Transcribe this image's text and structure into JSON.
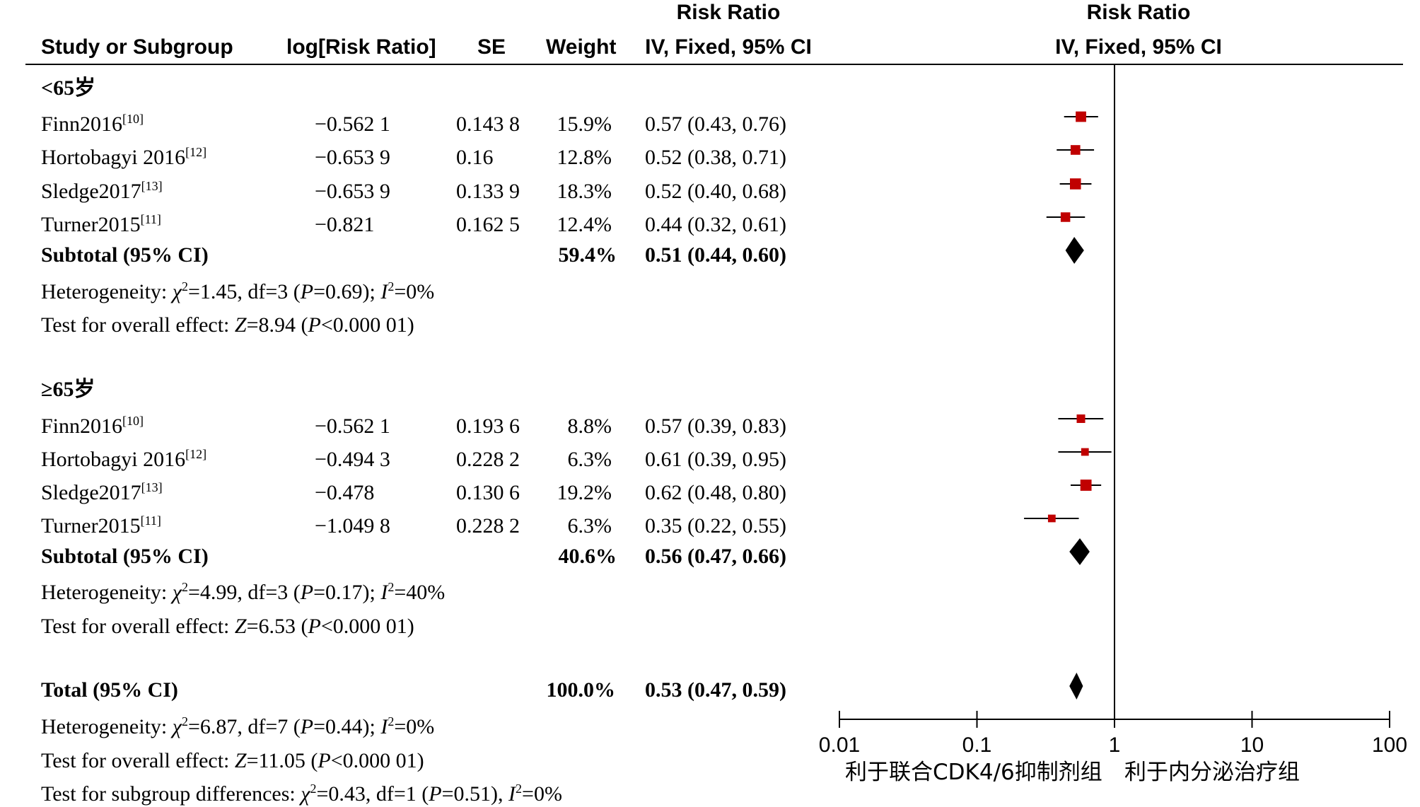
{
  "headers": {
    "study": "Study or Subgroup",
    "log_rr": "log[Risk Ratio]",
    "se": "SE",
    "weight": "Weight",
    "rr_top": "Risk Ratio",
    "rr_method": "IV, Fixed, 95% CI",
    "plot_top": "Risk Ratio",
    "plot_method": "IV, Fixed, 95% CI"
  },
  "groups": [
    {
      "label": "<65岁",
      "rows": [
        {
          "study": "Finn2016",
          "ref": "[10]",
          "log_rr": "−0.562 1",
          "se": "0.143 8",
          "weight": "15.9%",
          "ci": "0.57 (0.43, 0.76)"
        },
        {
          "study": "Hortobagyi 2016",
          "ref": "[12]",
          "log_rr": "−0.653 9",
          "se": "0.16",
          "weight": "12.8%",
          "ci": "0.52 (0.38, 0.71)"
        },
        {
          "study": "Sledge2017",
          "ref": "[13]",
          "log_rr": "−0.653 9",
          "se": "0.133 9",
          "weight": "18.3%",
          "ci": "0.52 (0.40, 0.68)"
        },
        {
          "study": "Turner2015",
          "ref": "[11]",
          "log_rr": "−0.821",
          "se": "0.162 5",
          "weight": "12.4%",
          "ci": "0.44 (0.32, 0.61)"
        }
      ],
      "subtotal": {
        "label": "Subtotal (95% CI)",
        "weight": "59.4%",
        "ci": "0.51 (0.44, 0.60)"
      },
      "heterogeneity": {
        "pre": "Heterogeneity: ",
        "chi_sym": "χ",
        "chi_sup": "2",
        "chi_val": "=1.45, df=3 (",
        "p_sym": "P",
        "p_val": "=0.69); ",
        "i_sym": "I",
        "i_sup": "2",
        "i_val": "=0%"
      },
      "overall": {
        "pre": "Test for overall effect: ",
        "z_sym": "Z",
        "z_val": "=8.94 (",
        "p_sym": "P",
        "p_val": "<0.000 01)"
      }
    },
    {
      "label": "≥65岁",
      "rows": [
        {
          "study": "Finn2016",
          "ref": "[10]",
          "log_rr": "−0.562 1",
          "se": "0.193 6",
          "weight": "8.8%",
          "ci": "0.57 (0.39, 0.83)"
        },
        {
          "study": "Hortobagyi 2016",
          "ref": "[12]",
          "log_rr": "−0.494 3",
          "se": "0.228 2",
          "weight": "6.3%",
          "ci": "0.61 (0.39, 0.95)"
        },
        {
          "study": "Sledge2017",
          "ref": "[13]",
          "log_rr": "−0.478",
          "se": "0.130 6",
          "weight": "19.2%",
          "ci": "0.62 (0.48, 0.80)"
        },
        {
          "study": "Turner2015",
          "ref": "[11]",
          "log_rr": "−1.049 8",
          "se": "0.228 2",
          "weight": "6.3%",
          "ci": "0.35 (0.22, 0.55)"
        }
      ],
      "subtotal": {
        "label": "Subtotal (95% CI)",
        "weight": "40.6%",
        "ci": "0.56 (0.47, 0.66)"
      },
      "heterogeneity": {
        "pre": "Heterogeneity: ",
        "chi_sym": "χ",
        "chi_sup": "2",
        "chi_val": "=4.99, df=3 (",
        "p_sym": "P",
        "p_val": "=0.17); ",
        "i_sym": "I",
        "i_sup": "2",
        "i_val": "=40%"
      },
      "overall": {
        "pre": "Test for overall effect: ",
        "z_sym": "Z",
        "z_val": "=6.53 (",
        "p_sym": "P",
        "p_val": "<0.000 01)"
      }
    }
  ],
  "total": {
    "label": "Total (95% CI)",
    "weight": "100.0%",
    "ci": "0.53 (0.47, 0.59)",
    "heterogeneity": {
      "pre": "Heterogeneity: ",
      "chi_sym": "χ",
      "chi_sup": "2",
      "chi_val": "=6.87, df=7 (",
      "p_sym": "P",
      "p_val": "=0.44); ",
      "i_sym": "I",
      "i_sup": "2",
      "i_val": "=0%"
    },
    "overall": {
      "pre": "Test for overall effect: ",
      "z_sym": "Z",
      "z_val": "=11.05 (",
      "p_sym": "P",
      "p_val": "<0.000 01)"
    },
    "subgroup": {
      "pre": "Test for subgroup differences: ",
      "chi_sym": "χ",
      "chi_sup": "2",
      "chi_val": "=0.43, df=1 (",
      "p_sym": "P",
      "p_val": "=0.51), ",
      "i_sym": "I",
      "i_sup": "2",
      "i_val": "=0%"
    }
  },
  "favors": {
    "left": "利于联合CDK4/6抑制剂组",
    "right": "利于内分泌治疗组"
  },
  "colors": {
    "study_marker": "#c00000",
    "diamond": "#000000",
    "line": "#000000"
  },
  "chart_data": {
    "type": "forest",
    "scale": "log",
    "xlim": [
      0.01,
      100
    ],
    "ticks": [
      0.01,
      0.1,
      1,
      10,
      100
    ],
    "tick_labels": [
      "0.01",
      "0.1",
      "1",
      "10",
      "100"
    ],
    "null_value": 1,
    "studies": [
      {
        "group": 0,
        "name": "Finn2016",
        "rr": 0.57,
        "lo": 0.43,
        "hi": 0.76,
        "weight": 15.9
      },
      {
        "group": 0,
        "name": "Hortobagyi 2016",
        "rr": 0.52,
        "lo": 0.38,
        "hi": 0.71,
        "weight": 12.8
      },
      {
        "group": 0,
        "name": "Sledge2017",
        "rr": 0.52,
        "lo": 0.4,
        "hi": 0.68,
        "weight": 18.3
      },
      {
        "group": 0,
        "name": "Turner2015",
        "rr": 0.44,
        "lo": 0.32,
        "hi": 0.61,
        "weight": 12.4
      },
      {
        "group": 1,
        "name": "Finn2016",
        "rr": 0.57,
        "lo": 0.39,
        "hi": 0.83,
        "weight": 8.8
      },
      {
        "group": 1,
        "name": "Hortobagyi 2016",
        "rr": 0.61,
        "lo": 0.39,
        "hi": 0.95,
        "weight": 6.3
      },
      {
        "group": 1,
        "name": "Sledge2017",
        "rr": 0.62,
        "lo": 0.48,
        "hi": 0.8,
        "weight": 19.2
      },
      {
        "group": 1,
        "name": "Turner2015",
        "rr": 0.35,
        "lo": 0.22,
        "hi": 0.55,
        "weight": 6.3
      }
    ],
    "pooled": [
      {
        "name": "Subtotal <65岁",
        "rr": 0.51,
        "lo": 0.44,
        "hi": 0.6
      },
      {
        "name": "Subtotal ≥65岁",
        "rr": 0.56,
        "lo": 0.47,
        "hi": 0.66
      },
      {
        "name": "Total",
        "rr": 0.53,
        "lo": 0.47,
        "hi": 0.59
      }
    ]
  }
}
